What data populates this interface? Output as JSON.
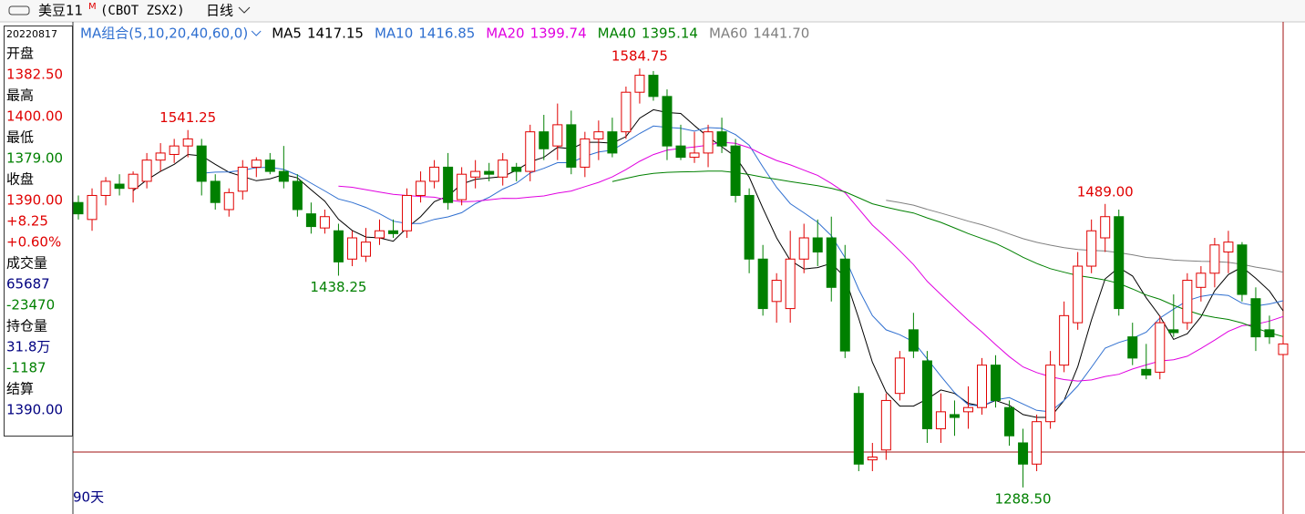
{
  "header": {
    "symbol": "美豆11",
    "superscript": "M",
    "code": "(CBOT ZSX2)",
    "period": "日线"
  },
  "info_panel": {
    "date": "20220817",
    "items": [
      {
        "label": "开盘",
        "value": "1382.50",
        "color": "#e00000"
      },
      {
        "label": "最高",
        "value": "1400.00",
        "color": "#e00000"
      },
      {
        "label": "最低",
        "value": "1379.00",
        "color": "#008000"
      },
      {
        "label": "收盘",
        "value": "1390.00",
        "color": "#e00000"
      },
      {
        "label": null,
        "value": "+8.25",
        "color": "#e00000"
      },
      {
        "label": null,
        "value": "+0.60%",
        "color": "#e00000"
      },
      {
        "label": "成交量",
        "value": "65687",
        "color": "#000080"
      },
      {
        "label": null,
        "value": "-23470",
        "color": "#008000"
      },
      {
        "label": "持仓量",
        "value": "31.8万",
        "color": "#000080"
      },
      {
        "label": null,
        "value": "-1187",
        "color": "#008000"
      },
      {
        "label": "结算",
        "value": "1390.00",
        "color": "#000080"
      }
    ]
  },
  "chart_data": {
    "type": "candlestick",
    "legend_title": "MA组合(5,10,20,40,60,0)",
    "footer": "90天",
    "ylim": [
      1271,
      1601
    ],
    "up_color": "#e00000",
    "down_color": "#008000",
    "series": [
      {
        "name": "MA5",
        "value": "1417.15",
        "color": "#000000"
      },
      {
        "name": "MA10",
        "value": "1416.85",
        "color": "#2f6fd0"
      },
      {
        "name": "MA20",
        "value": "1399.74",
        "color": "#e000e0"
      },
      {
        "name": "MA40",
        "value": "1395.14",
        "color": "#008000"
      },
      {
        "name": "MA60",
        "value": "1441.70",
        "color": "#808080"
      }
    ],
    "open": [
      1490,
      1478,
      1495,
      1503,
      1500,
      1505,
      1520,
      1524,
      1530,
      1530,
      1505,
      1485,
      1498,
      1515,
      1520,
      1512,
      1505,
      1482,
      1472,
      1470,
      1450,
      1452,
      1465,
      1470,
      1470,
      1495,
      1505,
      1515,
      1492,
      1508,
      1512,
      1508,
      1515,
      1512,
      1540,
      1530,
      1545,
      1515,
      1535,
      1540,
      1540,
      1568,
      1580,
      1565,
      1530,
      1522,
      1525,
      1540,
      1530,
      1495,
      1450,
      1420,
      1415,
      1450,
      1465,
      1465,
      1450,
      1355,
      1308,
      1315,
      1355,
      1400,
      1378,
      1330,
      1340,
      1342,
      1345,
      1375,
      1345,
      1320,
      1305,
      1335,
      1375,
      1405,
      1445,
      1465,
      1480,
      1395,
      1372,
      1370,
      1400,
      1405,
      1430,
      1440,
      1455,
      1460,
      1422,
      1400,
      1382.5
    ],
    "high": [
      1495,
      1500,
      1508,
      1510,
      1512,
      1525,
      1532,
      1535,
      1541.25,
      1535,
      1510,
      1500,
      1520,
      1522,
      1525,
      1530,
      1510,
      1490,
      1485,
      1475,
      1470,
      1472,
      1478,
      1478,
      1500,
      1512,
      1520,
      1525,
      1515,
      1520,
      1518,
      1525,
      1518,
      1545,
      1552,
      1560,
      1555,
      1540,
      1548,
      1550,
      1572,
      1584.75,
      1583,
      1570,
      1545,
      1540,
      1545,
      1550,
      1535,
      1500,
      1460,
      1440,
      1470,
      1475,
      1478,
      1480,
      1460,
      1360,
      1320,
      1355,
      1385,
      1412,
      1385,
      1355,
      1350,
      1360,
      1380,
      1382,
      1350,
      1330,
      1340,
      1385,
      1420,
      1455,
      1478,
      1489,
      1485,
      1405,
      1390,
      1410,
      1425,
      1440,
      1445,
      1465,
      1470,
      1462,
      1430,
      1410,
      1400
    ],
    "low": [
      1478,
      1470,
      1488,
      1495,
      1490,
      1500,
      1512,
      1518,
      1522,
      1495,
      1485,
      1480,
      1492,
      1508,
      1510,
      1500,
      1480,
      1468,
      1468,
      1438.25,
      1445,
      1448,
      1460,
      1465,
      1465,
      1490,
      1500,
      1485,
      1488,
      1500,
      1505,
      1502,
      1505,
      1505,
      1520,
      1520,
      1510,
      1508,
      1520,
      1522,
      1535,
      1560,
      1562,
      1520,
      1520,
      1518,
      1515,
      1525,
      1490,
      1440,
      1410,
      1405,
      1405,
      1440,
      1445,
      1420,
      1380,
      1300,
      1300,
      1308,
      1350,
      1380,
      1320,
      1320,
      1325,
      1330,
      1340,
      1345,
      1318,
      1288.5,
      1300,
      1330,
      1370,
      1400,
      1440,
      1455,
      1410,
      1375,
      1365,
      1365,
      1395,
      1400,
      1420,
      1430,
      1440,
      1420,
      1385,
      1390,
      1379
    ],
    "close": [
      1482,
      1495,
      1505,
      1500,
      1510,
      1520,
      1525,
      1530,
      1535,
      1505,
      1490,
      1497,
      1515,
      1520,
      1512,
      1505,
      1485,
      1473,
      1480,
      1448,
      1465,
      1462,
      1470,
      1468,
      1495,
      1505,
      1515,
      1490,
      1510,
      1512,
      1510,
      1520,
      1512,
      1540,
      1528,
      1545,
      1515,
      1535,
      1540,
      1525,
      1568,
      1580,
      1565,
      1530,
      1522,
      1525,
      1540,
      1530,
      1495,
      1450,
      1415,
      1435,
      1450,
      1465,
      1455,
      1430,
      1385,
      1305,
      1310,
      1350,
      1380,
      1385,
      1330,
      1342,
      1338,
      1345,
      1375,
      1350,
      1325,
      1305,
      1335,
      1375,
      1410,
      1445,
      1470,
      1480,
      1415,
      1380,
      1368,
      1405,
      1398,
      1435,
      1440,
      1460,
      1462,
      1425,
      1395,
      1395,
      1390
    ],
    "annotations": [
      {
        "value": 1541.25,
        "label": "1541.25"
      },
      {
        "value": 1438.25,
        "label": "1438.25"
      },
      {
        "value": 1584.75,
        "label": "1584.75"
      },
      {
        "value": 1489,
        "label": "1489.00"
      },
      {
        "value": 1288.5,
        "label": "1288.50"
      }
    ]
  }
}
